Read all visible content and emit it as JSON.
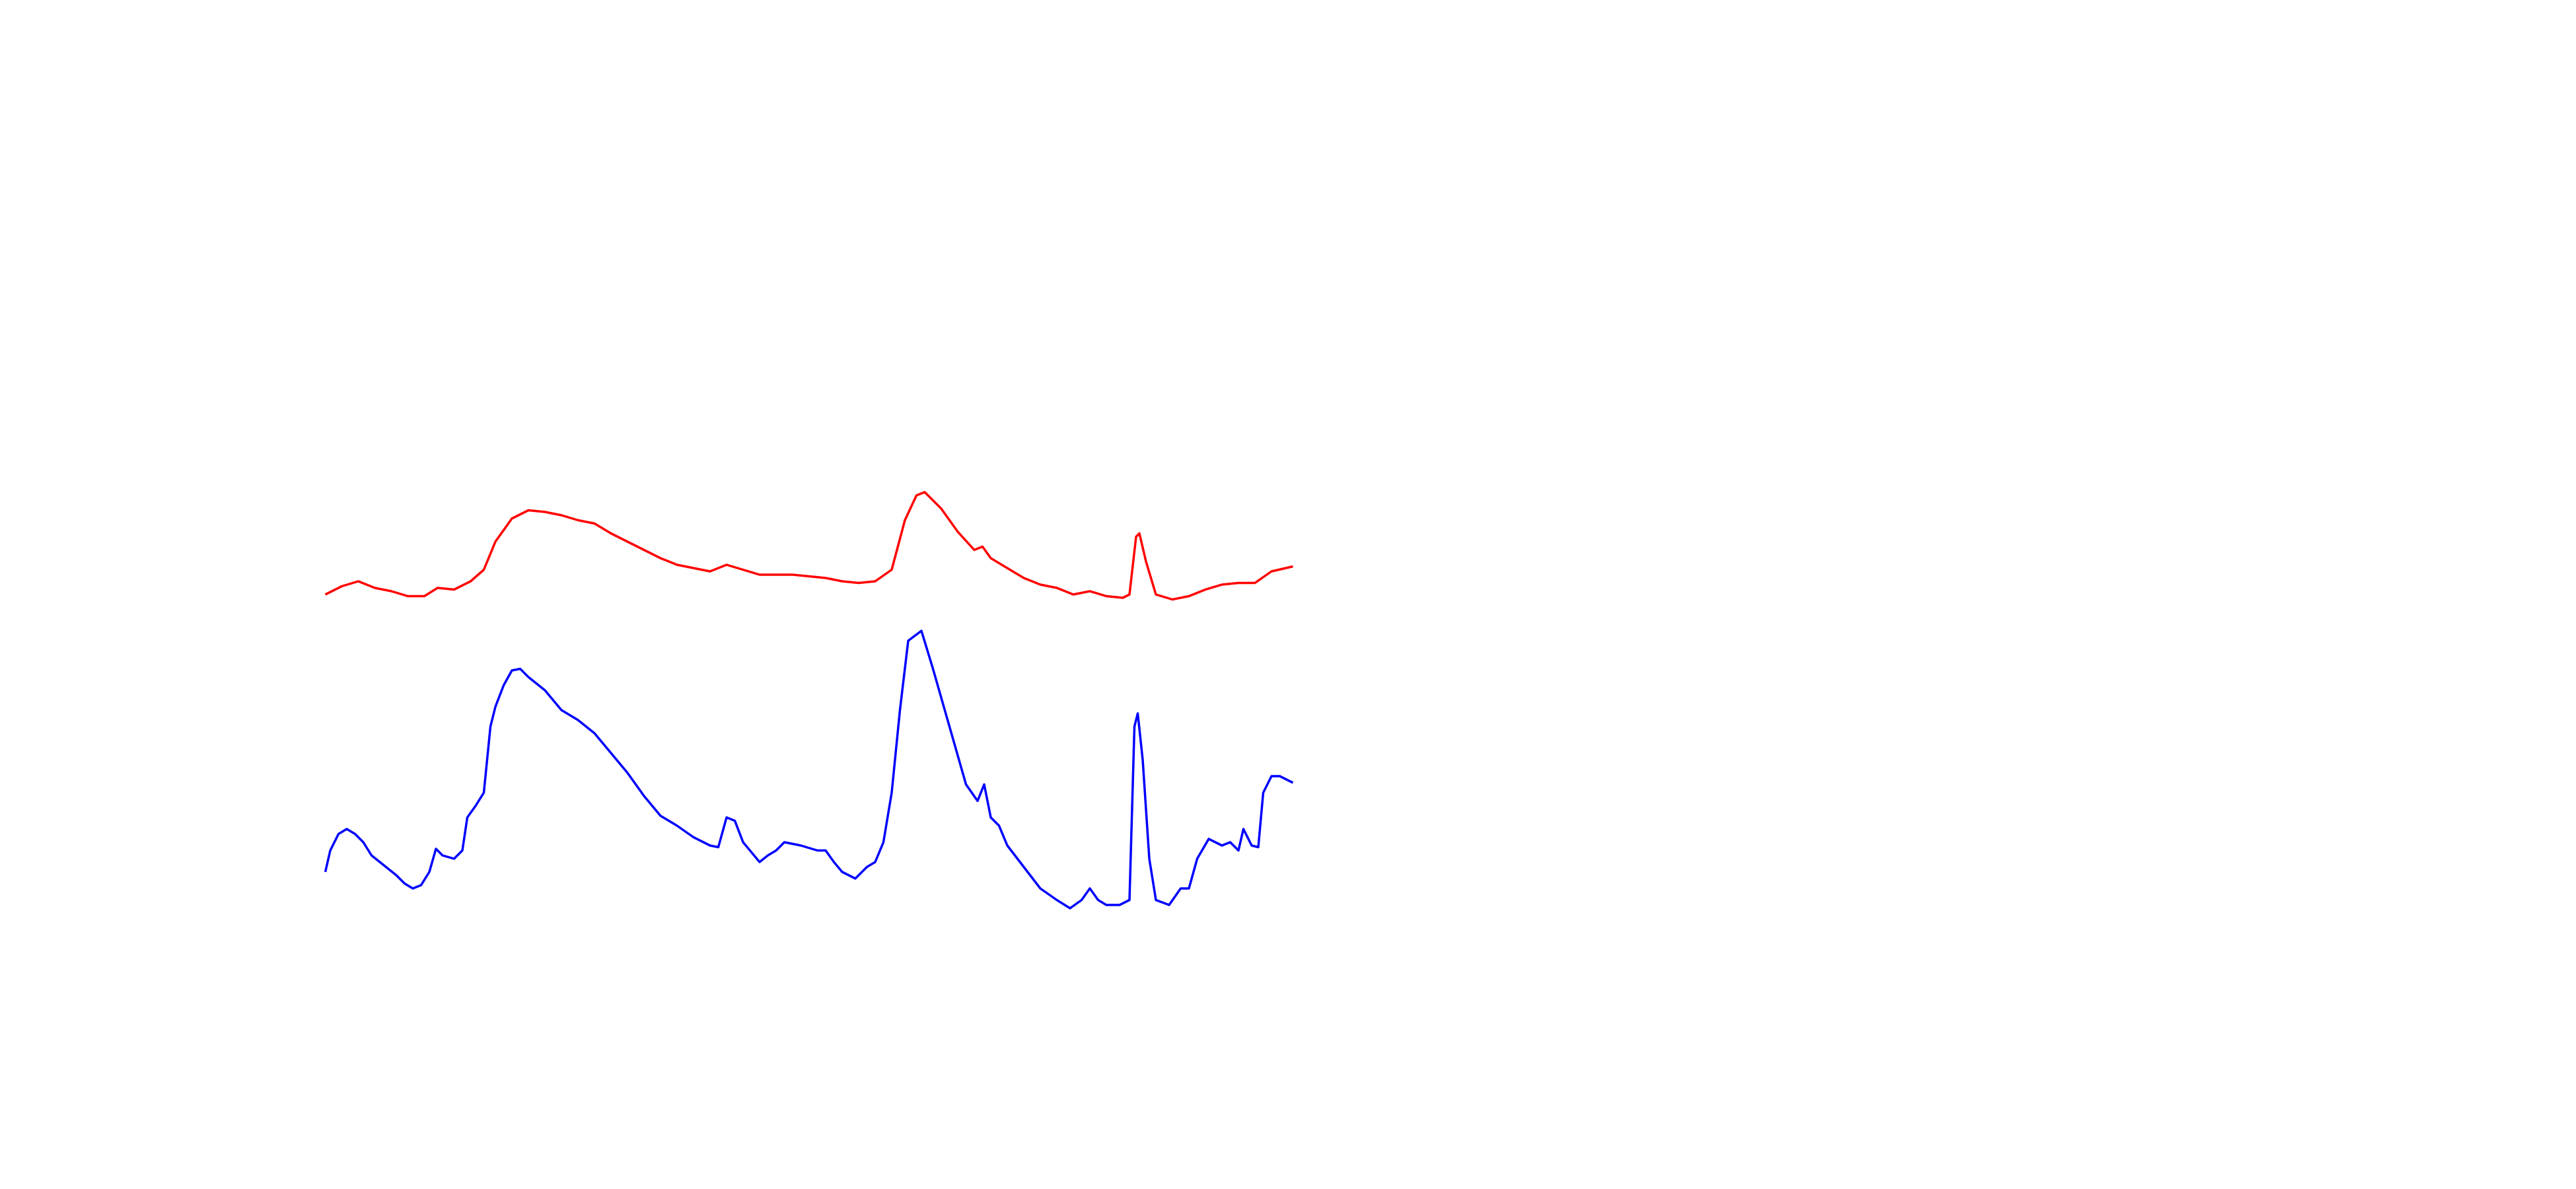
{
  "chart_data": {
    "type": "line",
    "xlim": [
      0,
      1560
    ],
    "ylim": [
      0,
      720
    ],
    "series": [
      {
        "color": "#ff0000",
        "x": [
          197,
          207,
          217,
          227,
          237,
          247,
          257,
          265,
          275,
          285,
          293,
          300,
          310,
          320,
          330,
          340,
          350,
          360,
          370,
          380,
          390,
          400,
          410,
          420,
          430,
          440,
          450,
          460,
          470,
          480,
          490,
          500,
          510,
          520,
          530,
          540,
          548,
          555,
          560,
          570,
          580,
          590,
          595,
          600,
          610,
          620,
          630,
          640,
          650,
          660,
          670,
          680,
          684,
          688,
          690,
          694,
          700,
          710,
          720,
          730,
          740,
          750,
          760,
          770,
          783
        ],
        "values": [
          360,
          365,
          368,
          364,
          362,
          359,
          359,
          364,
          363,
          368,
          375,
          392,
          406,
          411,
          410,
          408,
          405,
          403,
          397,
          392,
          387,
          382,
          378,
          376,
          374,
          378,
          375,
          372,
          372,
          372,
          371,
          370,
          368,
          367,
          368,
          375,
          405,
          420,
          422,
          412,
          398,
          387,
          389,
          382,
          376,
          370,
          366,
          364,
          360,
          362,
          359,
          358,
          360,
          395,
          397,
          380,
          360,
          357,
          359,
          363,
          366,
          367,
          367,
          374,
          377
        ]
      },
      {
        "color": "#0000ff",
        "x": [
          197,
          200,
          205,
          210,
          215,
          220,
          225,
          230,
          235,
          240,
          245,
          250,
          255,
          260,
          264,
          268,
          275,
          280,
          283,
          288,
          293,
          297,
          300,
          305,
          310,
          315,
          320,
          330,
          340,
          350,
          360,
          370,
          380,
          390,
          400,
          410,
          420,
          430,
          435,
          440,
          445,
          450,
          460,
          465,
          470,
          475,
          485,
          495,
          500,
          505,
          510,
          518,
          525,
          530,
          535,
          540,
          545,
          550,
          558,
          565,
          575,
          585,
          592,
          596,
          600,
          605,
          610,
          620,
          630,
          640,
          648,
          655,
          660,
          665,
          670,
          678,
          684,
          687,
          689,
          692,
          696,
          700,
          708,
          715,
          720,
          725,
          732,
          740,
          745,
          750,
          753,
          758,
          762,
          765,
          770,
          775,
          783
        ],
        "values": [
          192,
          205,
          215,
          218,
          215,
          210,
          202,
          198,
          194,
          190,
          185,
          182,
          184,
          192,
          206,
          202,
          200,
          205,
          225,
          232,
          240,
          280,
          292,
          305,
          314,
          315,
          310,
          302,
          290,
          284,
          276,
          264,
          252,
          238,
          226,
          220,
          213,
          208,
          207,
          225,
          223,
          210,
          198,
          202,
          205,
          210,
          208,
          205,
          205,
          198,
          192,
          188,
          195,
          198,
          210,
          240,
          290,
          332,
          338,
          315,
          280,
          245,
          235,
          245,
          225,
          220,
          208,
          195,
          182,
          175,
          170,
          175,
          182,
          175,
          172,
          172,
          175,
          280,
          288,
          260,
          200,
          175,
          172,
          182,
          182,
          200,
          212,
          208,
          210,
          205,
          218,
          208,
          207,
          240,
          250,
          250,
          246
        ]
      }
    ]
  }
}
